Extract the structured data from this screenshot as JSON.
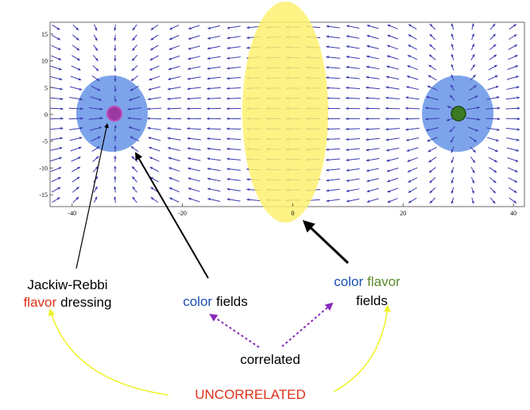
{
  "plot": {
    "x_ticks": [
      "-40",
      "-20",
      "0",
      "20",
      "40"
    ],
    "y_ticks": [
      "15",
      "10",
      "5",
      "0",
      "-5",
      "-10",
      "-15"
    ]
  },
  "labels": {
    "jackiw_line1": "Jackiw-Rebbi",
    "jackiw_flavor_word": "flavor",
    "jackiw_dressing_word": "dressing",
    "color_fields_color_word": "color",
    "color_fields_fields_word": "fields",
    "cff_color_word": "color",
    "cff_flavor_word": "flavor",
    "cff_fields_word": "fields",
    "correlated": "correlated",
    "uncorrelated": "UNCORRELATED"
  },
  "colors": {
    "stream": "#3a3ab0",
    "halo": "#6f9ae8",
    "flux_tube": "#fdf06e",
    "left_charge": "#9a3aa0",
    "right_charge": "#3c7a22",
    "text_blue": "#1a4fb0",
    "text_green": "#5a8a2a",
    "text_red": "#e0301a",
    "dashed_arrow": "#8a2ab8",
    "yellow_arrow": "#eef22a"
  }
}
